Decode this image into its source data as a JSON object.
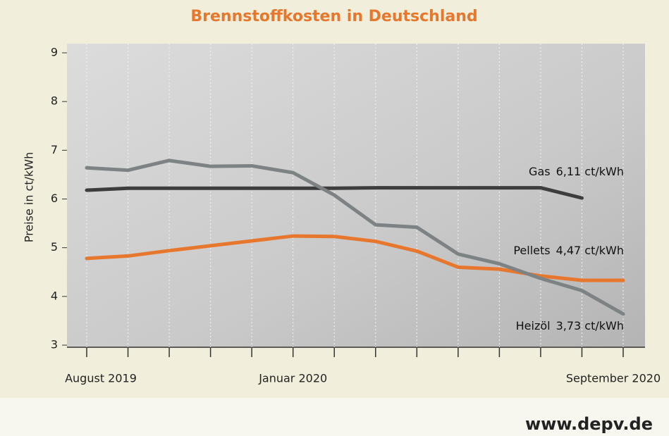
{
  "chart_data": {
    "type": "line",
    "title": "Brennstoffkosten in Deutschland",
    "y_label": "Preise in ct/kWh",
    "categories": [
      "August 2019",
      null,
      null,
      null,
      null,
      "Januar 2020",
      null,
      null,
      null,
      null,
      null,
      null,
      null,
      "September 2020"
    ],
    "ylim": [
      3,
      9
    ],
    "yticks": [
      3,
      4,
      5,
      6,
      7,
      8,
      9
    ],
    "series": [
      {
        "name": "Gas",
        "annotation": "6,11 ct/kWh",
        "color": "#3d3d3d",
        "values": [
          6.18,
          6.22,
          6.22,
          6.22,
          6.22,
          6.22,
          6.22,
          6.23,
          6.23,
          6.23,
          6.23,
          6.23,
          6.02,
          null
        ]
      },
      {
        "name": "Pellets",
        "annotation": "4,47 ct/kWh",
        "color": "#e8772e",
        "values": [
          4.78,
          4.83,
          4.94,
          5.04,
          5.14,
          5.24,
          5.23,
          5.13,
          4.93,
          4.6,
          4.56,
          4.42,
          4.33,
          4.33
        ]
      },
      {
        "name": "Heizöl",
        "annotation": "3,73 ct/kWh",
        "color": "#7d8285",
        "values": [
          6.64,
          6.59,
          6.79,
          6.67,
          6.68,
          6.54,
          6.08,
          5.47,
          5.42,
          4.87,
          4.67,
          4.37,
          4.12,
          3.64
        ]
      }
    ],
    "source": "www.depv.de"
  }
}
